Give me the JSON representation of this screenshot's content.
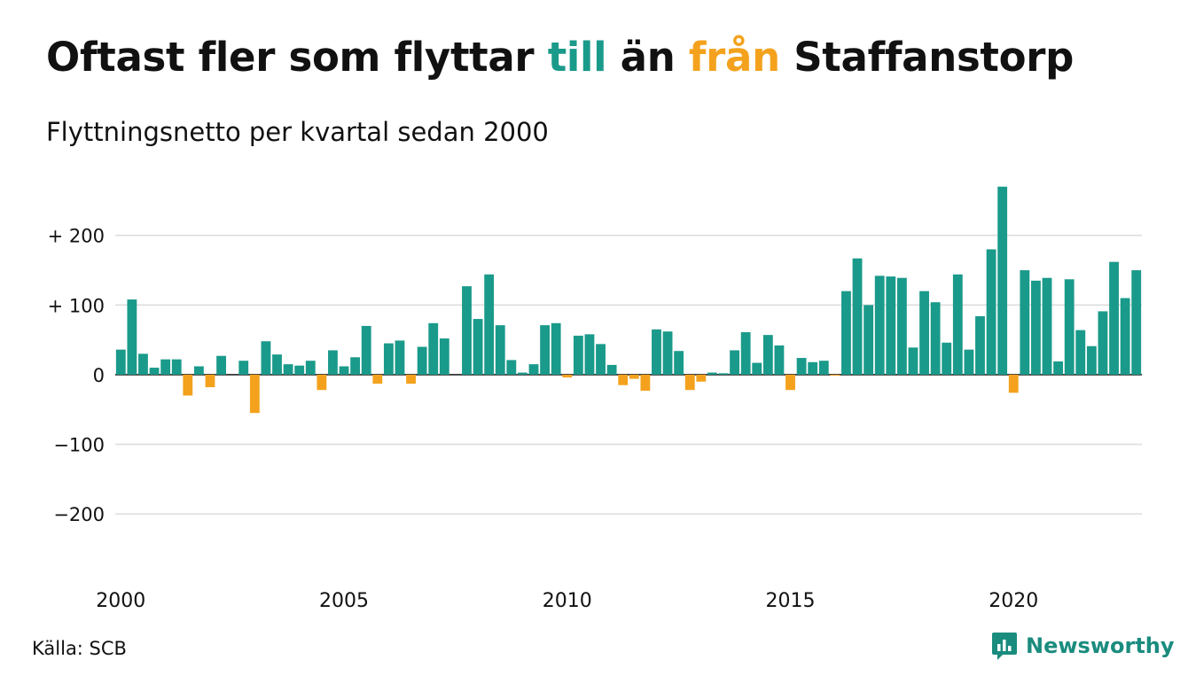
{
  "header": {
    "title_parts": [
      {
        "text": "Oftast fler som flyttar "
      },
      {
        "text": "till",
        "color_key": "positive"
      },
      {
        "text": " än "
      },
      {
        "text": "från",
        "color_key": "negative"
      },
      {
        "text": " Staffanstorp"
      }
    ],
    "subtitle": "Flyttningsnetto per kvartal sedan 2000"
  },
  "colors": {
    "positive": "#1a9a8a",
    "negative": "#f4a21d",
    "text": "#111111",
    "grid": "#dddddd",
    "brand": "#1a8c7e"
  },
  "footer": {
    "source": "Källa: SCB",
    "brand_name": "Newsworthy",
    "brand_icon": "newsworthy-logo-icon"
  },
  "chart_data": {
    "type": "bar",
    "title": "Oftast fler som flyttar till än från Staffanstorp",
    "subtitle": "Flyttningsnetto per kvartal sedan 2000",
    "xlabel": "",
    "ylabel": "",
    "ylim": [
      -280,
      290
    ],
    "yticks": [
      200,
      100,
      0,
      -100,
      -200
    ],
    "ytick_labels": [
      "+ 200",
      "+ 100",
      "0",
      "−100",
      "−200"
    ],
    "xticks": [
      2000,
      2005,
      2010,
      2015,
      2020
    ],
    "xtick_labels": [
      "2000",
      "2005",
      "2010",
      "2015",
      "2020"
    ],
    "start_year": 2000,
    "periods_per_year": 4,
    "grid": true,
    "legend": "none",
    "values": [
      36,
      108,
      30,
      10,
      22,
      22,
      -30,
      12,
      -18,
      27,
      0,
      20,
      -55,
      48,
      29,
      15,
      13,
      20,
      -22,
      35,
      12,
      25,
      70,
      -13,
      45,
      49,
      -13,
      40,
      74,
      52,
      0,
      127,
      80,
      144,
      71,
      21,
      3,
      15,
      71,
      74,
      -4,
      56,
      58,
      44,
      14,
      -15,
      -6,
      -23,
      65,
      62,
      34,
      -22,
      -10,
      3,
      2,
      35,
      61,
      17,
      57,
      42,
      -22,
      24,
      18,
      20,
      -1,
      120,
      167,
      100,
      142,
      141,
      139,
      39,
      120,
      104,
      46,
      144,
      36,
      84,
      180,
      270,
      -26,
      150,
      135,
      139,
      19,
      137,
      64,
      41,
      91,
      162,
      110,
      150
    ]
  }
}
